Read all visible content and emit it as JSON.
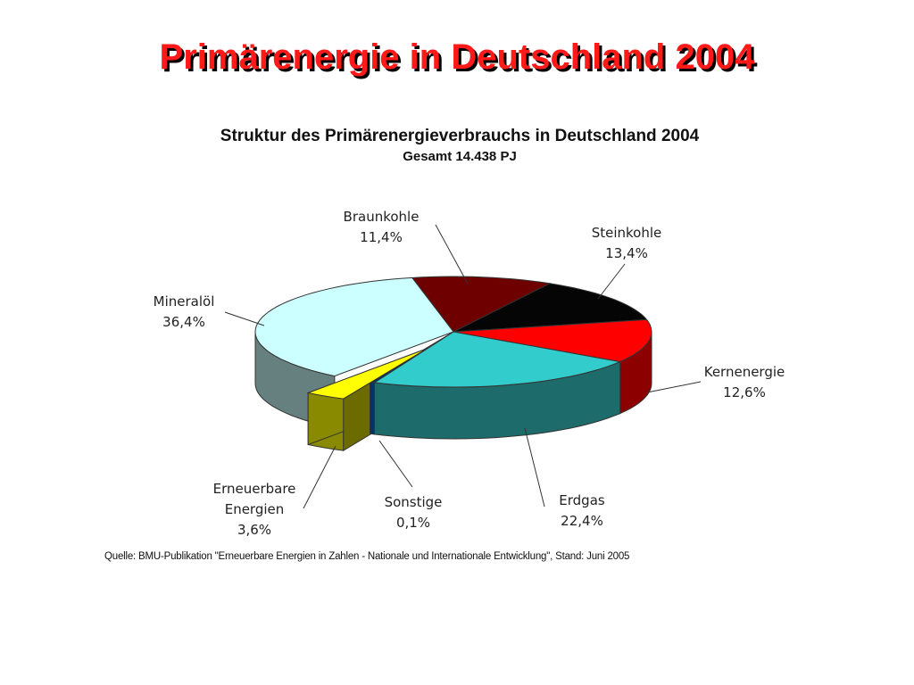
{
  "slide": {
    "title": "Primärenergie in Deutschland 2004",
    "source": "Quelle: BMU-Publikation \"Erneuerbare Energien in Zahlen - Nationale und Internationale Entwicklung\", Stand: Juni 2005"
  },
  "chart_data": {
    "type": "pie",
    "title": "Struktur des Primärenergieverbrauchs in Deutschland 2004",
    "subtitle": "Gesamt 14.438 PJ",
    "style": "3d-exploded",
    "slices": [
      {
        "name": "Braunkohle",
        "value": 11.4,
        "label": "11,4%",
        "color": "#6e0000",
        "side": "#4a0000"
      },
      {
        "name": "Steinkohle",
        "value": 13.4,
        "label": "13,4%",
        "color": "#050505",
        "side": "#000000"
      },
      {
        "name": "Kernenergie",
        "value": 12.6,
        "label": "12,6%",
        "color": "#ff0000",
        "side": "#8c0000"
      },
      {
        "name": "Erdgas",
        "value": 22.4,
        "label": "22,4%",
        "color": "#33cccc",
        "side": "#1d6b6b"
      },
      {
        "name": "Sonstige",
        "value": 0.1,
        "label": "0,1%",
        "color": "#003366",
        "side": "#003366"
      },
      {
        "name": "Erneuerbare Energien",
        "value": 3.6,
        "label": "3,6%",
        "color": "#ffff00",
        "side": "#8a8a00"
      },
      {
        "name": "Mineralöl",
        "value": 36.4,
        "label": "36,4%",
        "color": "#ccffff",
        "side": "#668080"
      }
    ]
  }
}
